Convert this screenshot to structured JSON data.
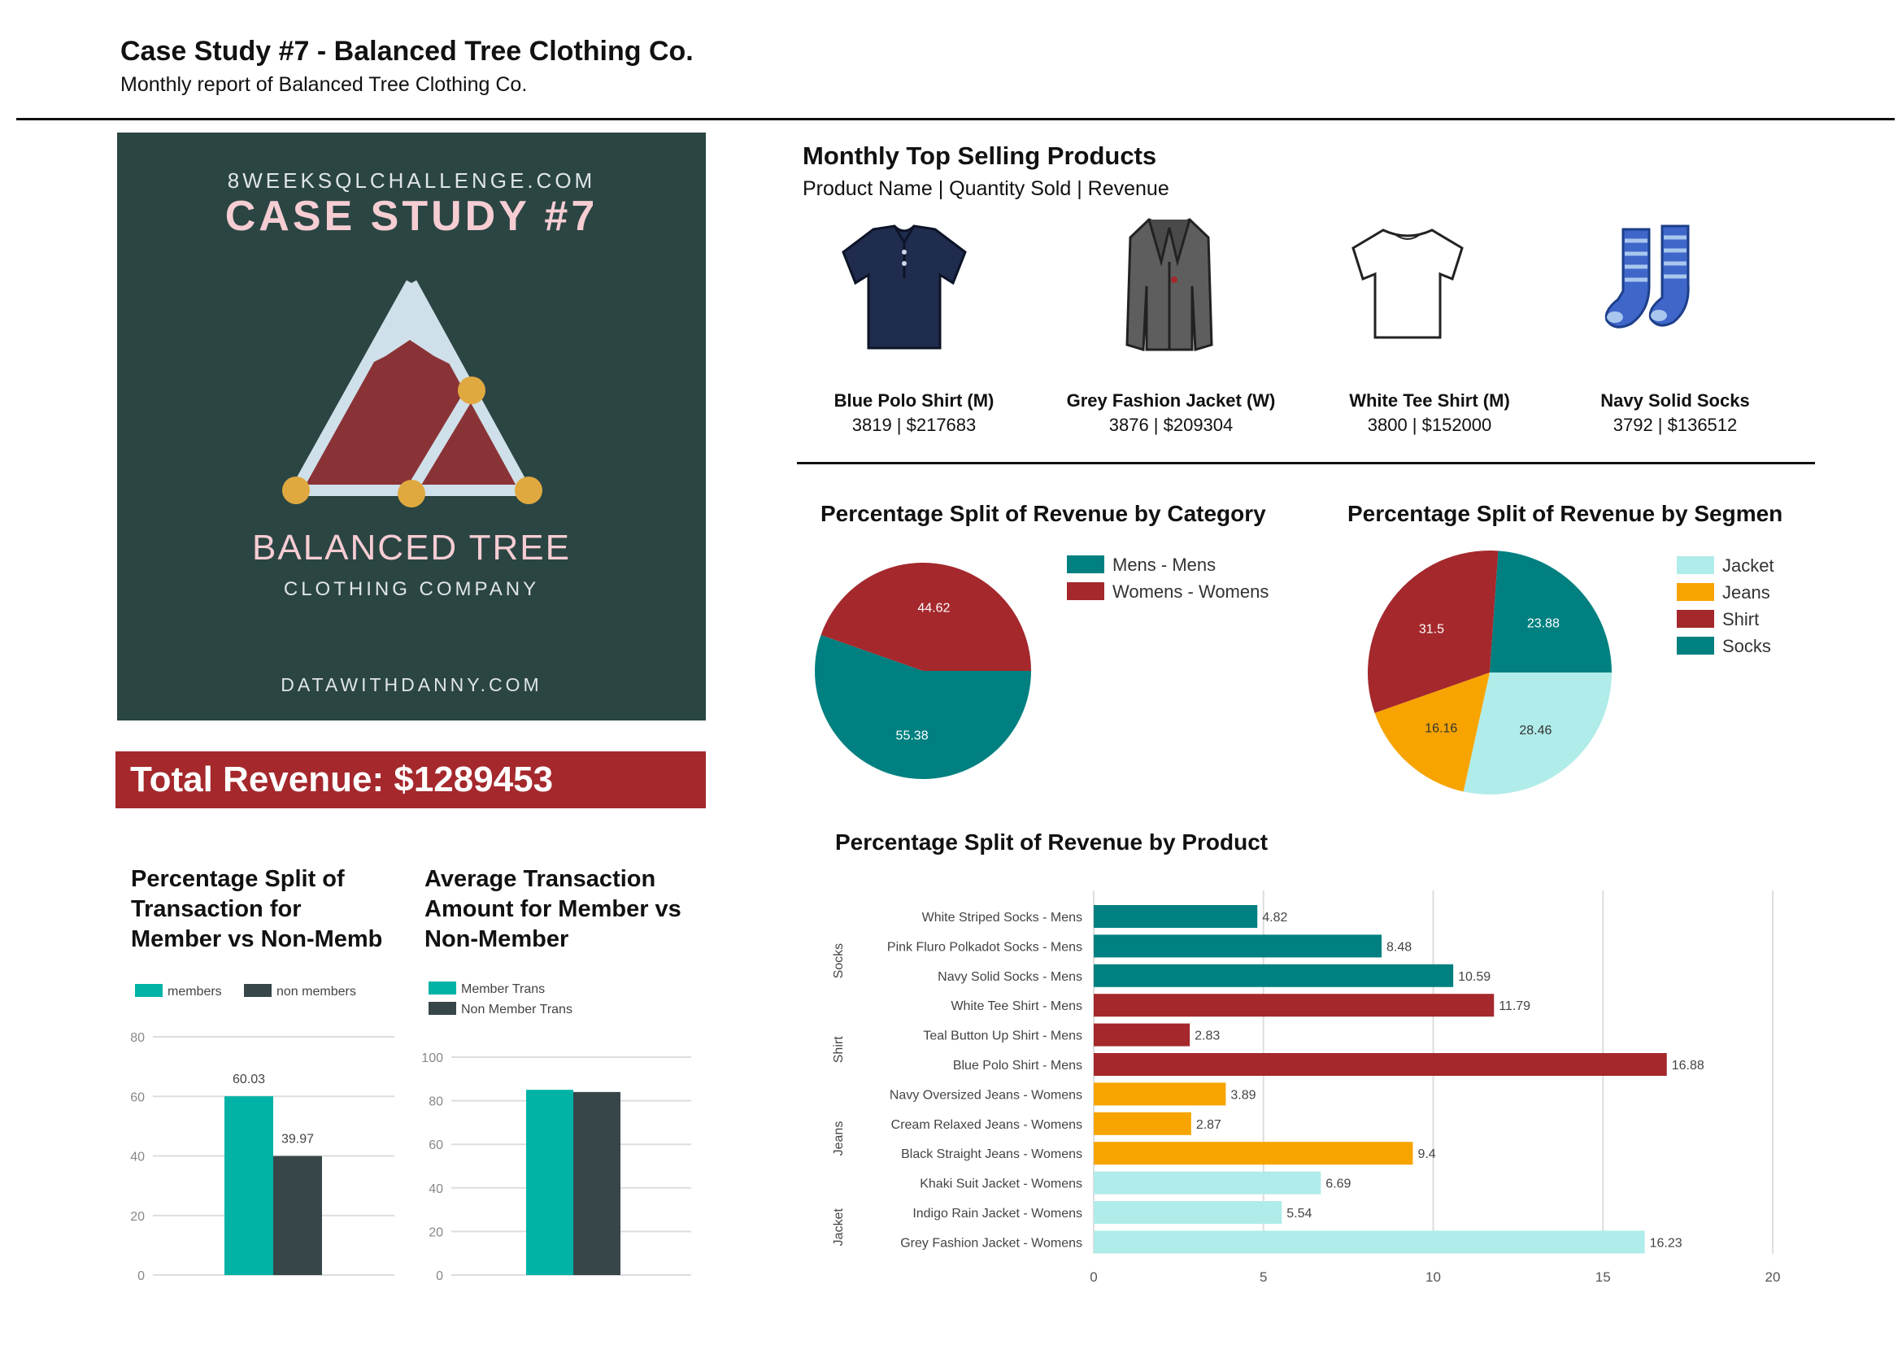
{
  "header": {
    "title": "Case Study #7 - Balanced Tree Clothing Co.",
    "subtitle": "Monthly report of  Balanced Tree Clothing Co."
  },
  "logo": {
    "site": "8WEEKSQLCHALLENGE.COM",
    "case": "CASE STUDY #7",
    "brand": "BALANCED TREE",
    "tagline": "CLOTHING COMPANY",
    "footer": "DATAWITHDANNY.COM"
  },
  "total_revenue": "Total Revenue: $1289453",
  "top_products": {
    "title": "Monthly Top Selling Products",
    "subtitle": "Product Name | Quantity Sold | Revenue",
    "items": [
      {
        "name": "Blue Polo Shirt (M)",
        "stats": "3819 | $217683",
        "icon": "polo-shirt-icon"
      },
      {
        "name": "Grey Fashion Jacket (W)",
        "stats": "3876 | $209304",
        "icon": "jacket-icon"
      },
      {
        "name": "White Tee Shirt (M)",
        "stats": "3800 | $152000",
        "icon": "tee-shirt-icon"
      },
      {
        "name": "Navy Solid Socks",
        "stats": "3792 | $136512",
        "icon": "socks-icon"
      }
    ]
  },
  "colors": {
    "teal": "#008080",
    "red": "#a4282c",
    "orange": "#f7a400",
    "light_teal": "#b0ece9",
    "member": "#00b3a6",
    "non_member": "#374649",
    "logo_bg": "#2b4543"
  },
  "chart_data": [
    {
      "id": "category",
      "type": "pie",
      "title": "Percentage Split of Revenue by Category",
      "labels": [
        "Mens - Mens",
        "Womens - Womens"
      ],
      "values": [
        55.38,
        44.62
      ],
      "colors": [
        "#008080",
        "#a4282c"
      ],
      "legend": "top-right"
    },
    {
      "id": "segment",
      "type": "pie",
      "title": "Percentage Split of Revenue by Segmen",
      "labels": [
        "Jacket",
        "Jeans",
        "Shirt",
        "Socks"
      ],
      "values": [
        28.46,
        16.16,
        31.5,
        23.88
      ],
      "display_labels": [
        "28.46",
        "16.16",
        "31.5",
        "23.88"
      ],
      "colors": [
        "#b0ece9",
        "#f7a400",
        "#a4282c",
        "#008080"
      ],
      "legend": "top-right"
    },
    {
      "id": "product",
      "type": "bar",
      "orientation": "horizontal",
      "title": "Percentage Split of Revenue by Product",
      "groups": [
        {
          "name": "Socks",
          "color": "#008080",
          "items": [
            {
              "label": "White Striped Socks - Mens",
              "value": 4.82
            },
            {
              "label": "Pink Fluro Polkadot Socks - Mens",
              "value": 8.48
            },
            {
              "label": "Navy Solid Socks - Mens",
              "value": 10.59
            }
          ]
        },
        {
          "name": "Shirt",
          "color": "#a4282c",
          "items": [
            {
              "label": "White Tee Shirt - Mens",
              "value": 11.79
            },
            {
              "label": "Teal Button Up Shirt - Mens",
              "value": 2.83
            },
            {
              "label": "Blue Polo Shirt - Mens",
              "value": 16.88
            }
          ]
        },
        {
          "name": "Jeans",
          "color": "#f7a400",
          "items": [
            {
              "label": "Navy Oversized Jeans - Womens",
              "value": 3.89
            },
            {
              "label": "Cream Relaxed Jeans - Womens",
              "value": 2.87
            },
            {
              "label": "Black Straight Jeans - Womens",
              "value": 9.4
            }
          ]
        },
        {
          "name": "Jacket",
          "color": "#b0ece9",
          "items": [
            {
              "label": "Khaki Suit Jacket - Womens",
              "value": 6.69
            },
            {
              "label": "Indigo Rain Jacket - Womens",
              "value": 5.54
            },
            {
              "label": "Grey Fashion Jacket - Womens",
              "value": 16.23
            }
          ]
        }
      ],
      "xlim": [
        0,
        20
      ],
      "xticks": [
        0,
        5,
        10,
        15,
        20
      ],
      "grid": true
    },
    {
      "id": "member_split",
      "type": "bar",
      "title_lines": [
        "Percentage Split of",
        "Transaction for",
        "Member vs Non-Memb"
      ],
      "series": [
        {
          "name": "members",
          "value": 60.03,
          "color": "#00b3a6"
        },
        {
          "name": "non members",
          "value": 39.97,
          "color": "#374649"
        }
      ],
      "ylim": [
        0,
        80
      ],
      "yticks": [
        0,
        20,
        40,
        60,
        80
      ],
      "data_labels": true,
      "legend": "top-left"
    },
    {
      "id": "avg_txn",
      "type": "bar",
      "title_lines": [
        "Average Transaction",
        "Amount for Member vs",
        "Non-Member"
      ],
      "series": [
        {
          "name": "Member Trans",
          "value": 85.0,
          "color": "#00b3a6"
        },
        {
          "name": "Non Member Trans",
          "value": 84.0,
          "color": "#374649"
        }
      ],
      "ylim": [
        0,
        100
      ],
      "yticks": [
        0,
        20,
        40,
        60,
        80,
        100
      ],
      "data_labels": false,
      "legend": "top-left"
    }
  ]
}
